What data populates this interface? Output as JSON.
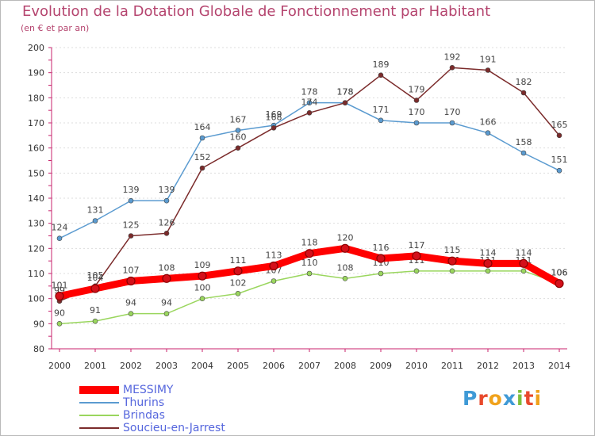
{
  "title": "Evolution de la Dotation Globale de Fonctionnement par Habitant",
  "subtitle": "(en € et par an)",
  "logo": {
    "text": "Proxiti",
    "letter_colors": [
      "#3f9ad6",
      "#e8492c",
      "#f0a21c",
      "#3f9ad6",
      "#7dbf3b",
      "#e8492c",
      "#f0a21c"
    ]
  },
  "chart_data": {
    "type": "line",
    "x": [
      "2000",
      "2001",
      "2002",
      "2003",
      "2004",
      "2005",
      "2006",
      "2007",
      "2008",
      "2009",
      "2010",
      "2011",
      "2012",
      "2013",
      "2014"
    ],
    "ylim": [
      80,
      200
    ],
    "yticks": [
      "80",
      "90",
      "100",
      "110",
      "120",
      "130",
      "140",
      "150",
      "160",
      "170",
      "180",
      "190",
      "200"
    ],
    "grid": "horizontal dotted",
    "series": [
      {
        "name": "Thurins",
        "color": "#5b9bd0",
        "values": [
          124,
          131,
          139,
          139,
          164,
          167,
          169,
          178,
          178,
          171,
          170,
          170,
          166,
          158,
          151
        ]
      },
      {
        "name": "Soucieu-en-Jarrest",
        "color": "#7b2b2b",
        "values": [
          99,
          105,
          125,
          126,
          152,
          160,
          168,
          174,
          178,
          189,
          179,
          192,
          191,
          182,
          165
        ]
      },
      {
        "name": "Brindas",
        "color": "#9ad65e",
        "values": [
          90,
          91,
          94,
          94,
          100,
          102,
          107,
          110,
          108,
          110,
          111,
          111,
          111,
          111,
          106
        ]
      },
      {
        "name": "MESSIMY",
        "color": "#ff0000",
        "values": [
          101,
          104,
          107,
          108,
          109,
          111,
          113,
          118,
          120,
          116,
          117,
          115,
          114,
          114,
          106
        ]
      }
    ],
    "legend_order": [
      "MESSIMY",
      "Thurins",
      "Brindas",
      "Soucieu-en-Jarrest"
    ],
    "legend_position": "bottom-left"
  }
}
